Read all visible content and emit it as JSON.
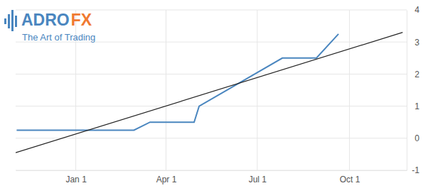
{
  "chart_data": {
    "type": "line",
    "annotations": [
      "ADRO",
      "FX",
      "The Art of Trading"
    ],
    "xlim": [
      -60,
      330
    ],
    "xticks": [
      {
        "value": 0,
        "label": "Jan 1"
      },
      {
        "value": 90,
        "label": "Apr 1"
      },
      {
        "value": 181,
        "label": "Jul 1"
      },
      {
        "value": 273,
        "label": "Oct 1"
      }
    ],
    "ylim": [
      -1,
      4
    ],
    "yticks": [
      -1,
      0,
      1,
      2,
      3,
      4
    ],
    "grid": true,
    "series": [
      {
        "color": "#4a86bf",
        "x": [
          -59,
          58,
          74,
          118,
          123,
          206,
          240,
          262
        ],
        "values": [
          0.25,
          0.25,
          0.5,
          0.5,
          1.0,
          2.5,
          2.5,
          3.25
        ]
      },
      {
        "color": "#222222",
        "x": [
          -60,
          326
        ],
        "values": [
          -0.45,
          3.3
        ]
      }
    ]
  }
}
